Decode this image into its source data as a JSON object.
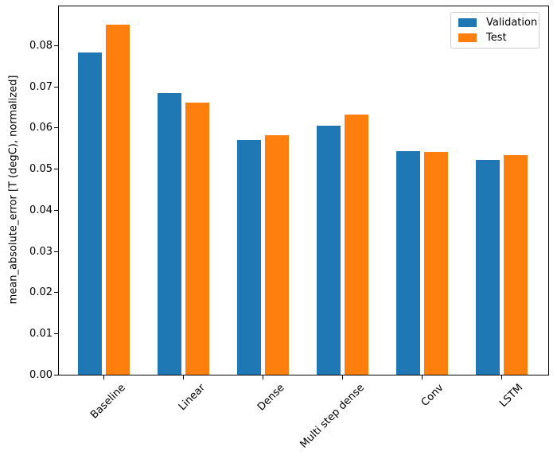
{
  "chart_data": {
    "type": "bar",
    "title": "",
    "categories": [
      "Baseline",
      "Linear",
      "Dense",
      "Multi step dense",
      "Conv",
      "LSTM"
    ],
    "series": [
      {
        "name": "Validation",
        "color": "#1f77b4",
        "values": [
          0.0785,
          0.0686,
          0.0573,
          0.0607,
          0.0545,
          0.0524
        ]
      },
      {
        "name": "Test",
        "color": "#ff7f0e",
        "values": [
          0.0853,
          0.0663,
          0.0584,
          0.0634,
          0.0543,
          0.0535
        ]
      }
    ],
    "xlabel": "",
    "ylabel": "mean_absolute_error [T (degC), normalized]",
    "ylim": [
      0,
      0.0898
    ],
    "yticks": [
      "0.00",
      "0.01",
      "0.02",
      "0.03",
      "0.04",
      "0.05",
      "0.06",
      "0.07",
      "0.08"
    ],
    "grid": false,
    "legend": {
      "position": "upper right"
    }
  }
}
